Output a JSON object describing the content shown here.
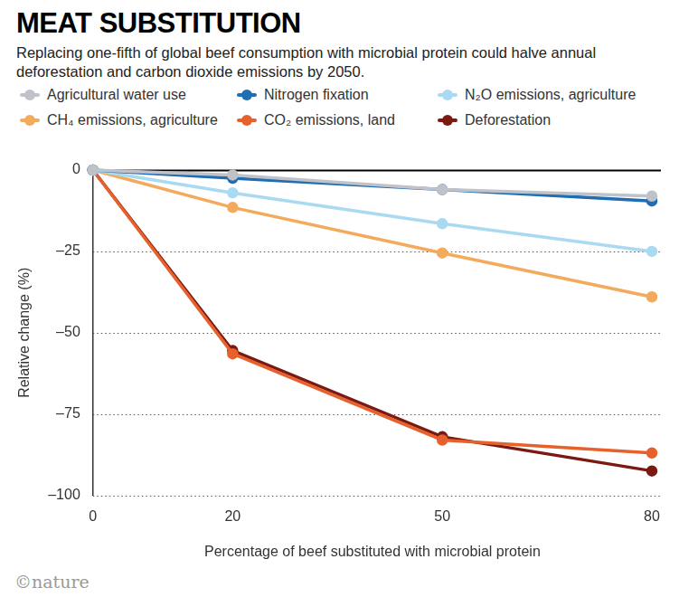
{
  "chart_data": {
    "type": "line",
    "title": "MEAT SUBSTITUTION",
    "subtitle": "Replacing one-fifth of global beef consumption with microbial protein could halve annual deforestation and carbon dioxide emissions by 2050.",
    "x_label": "Percentage of beef substituted with microbial protein",
    "y_label": "Relative change (%)",
    "credit": "©nature",
    "x": [
      0,
      20,
      50,
      80
    ],
    "xlim": [
      0,
      80
    ],
    "xticks": [
      0,
      20,
      50,
      80
    ],
    "ylim": [
      -100,
      0
    ],
    "yticks": [
      0,
      {
        "value": -25,
        "label": "–25"
      },
      {
        "value": -50,
        "label": "–50"
      },
      {
        "value": -75,
        "label": "–75"
      },
      {
        "value": -100,
        "label": "–100"
      }
    ],
    "grid": true,
    "marker": "circle",
    "line_style": "solid",
    "series": [
      {
        "name": "Agricultural water use",
        "color": "#bfc2c8",
        "values": [
          0,
          -1.5,
          -6,
          -8
        ]
      },
      {
        "name": "Nitrogen fixation",
        "color": "#1f6db2",
        "values": [
          0,
          -2.5,
          -6,
          -9.5
        ]
      },
      {
        "name": "N₂O emissions, agriculture",
        "color": "#a9daf2",
        "values": [
          0,
          -7,
          -16.5,
          -25
        ]
      },
      {
        "name": "CH₄ emissions, agriculture",
        "color": "#f3aa5c",
        "values": [
          0,
          -11.5,
          -25.5,
          -39
        ]
      },
      {
        "name": "CO₂ emissions, land",
        "color": "#e6612b",
        "values": [
          0,
          -56.5,
          -83,
          -87
        ]
      },
      {
        "name": "Deforestation",
        "color": "#7b1a12",
        "values": [
          0,
          -55.5,
          -82,
          -92.5
        ]
      }
    ]
  }
}
